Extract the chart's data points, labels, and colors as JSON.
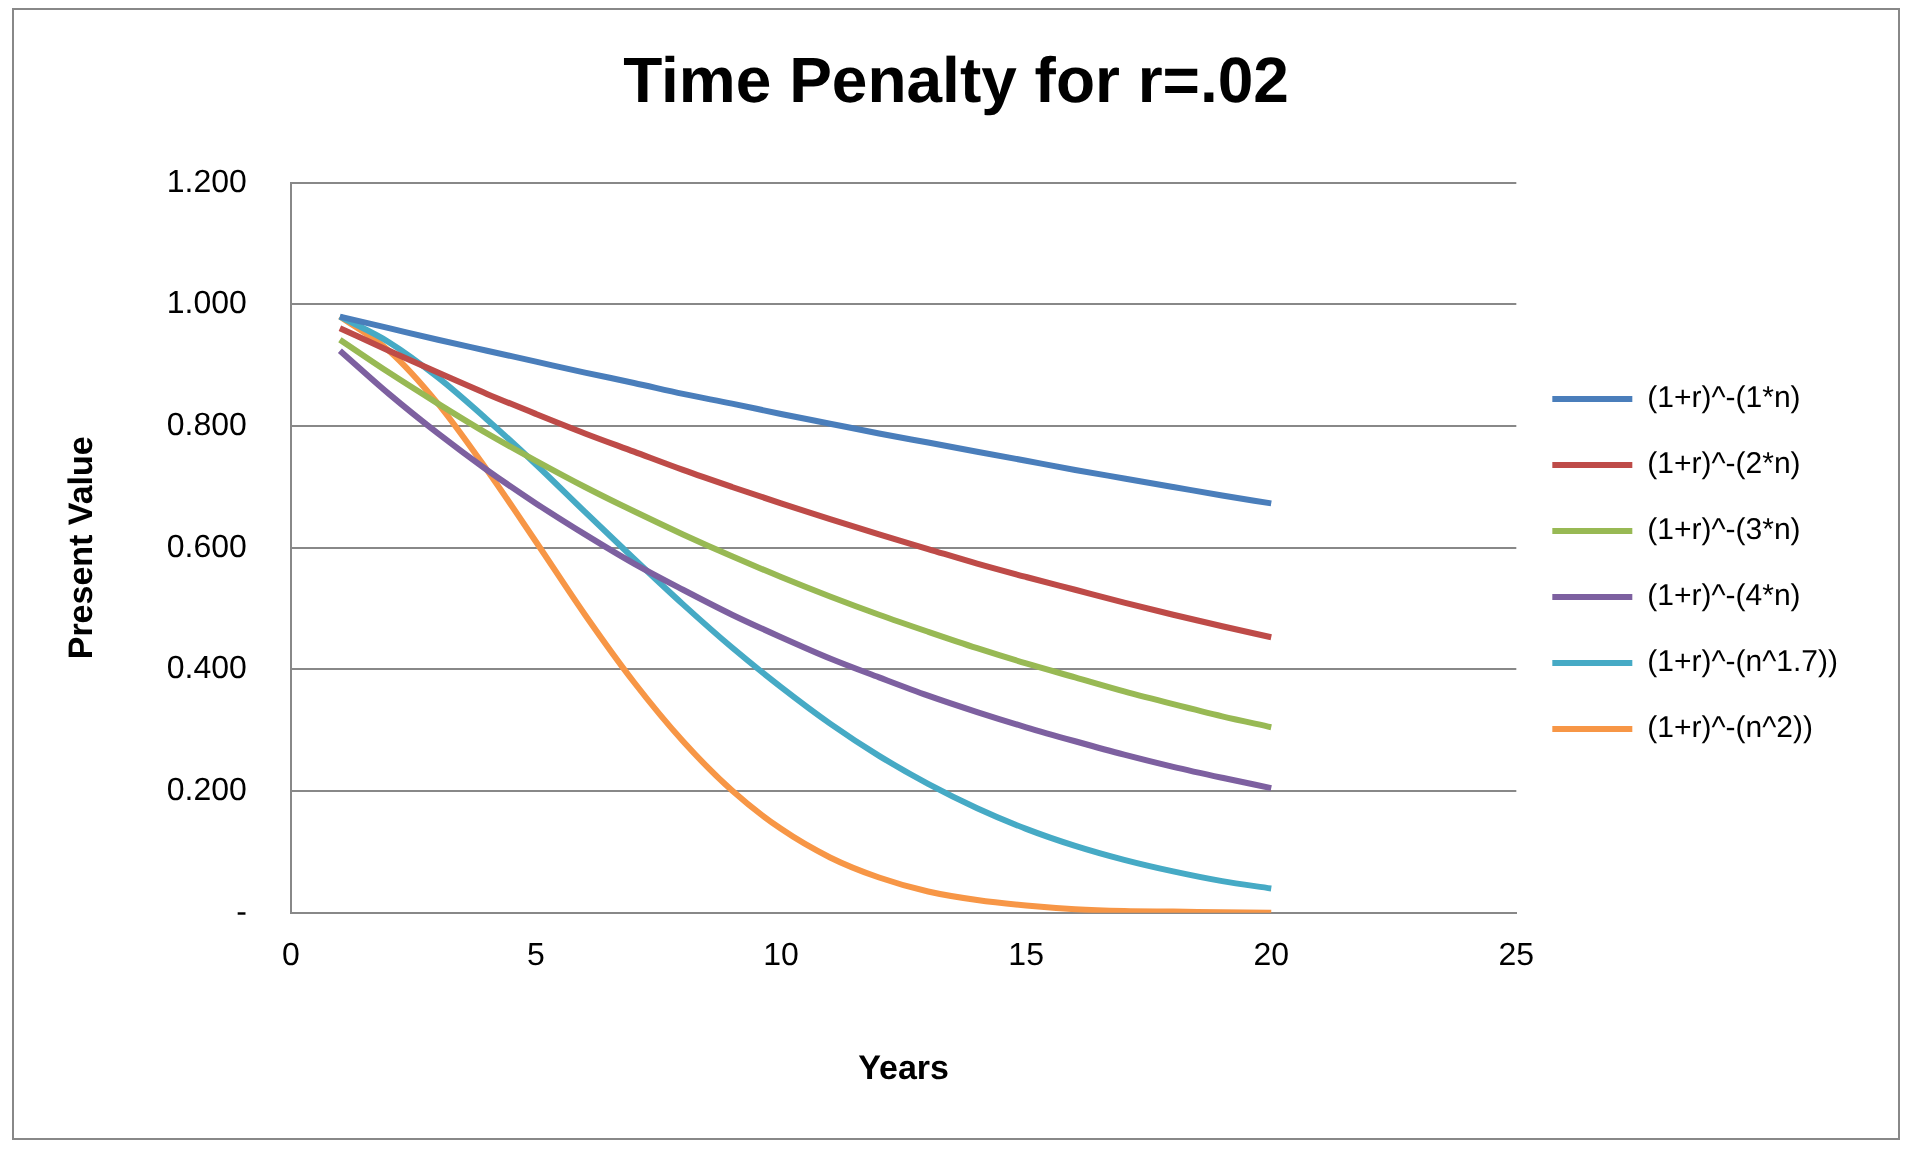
{
  "chart_data": {
    "type": "line",
    "title": "Time Penalty for r=.02",
    "xlabel": "Years",
    "ylabel": "Present Value",
    "x": [
      1,
      2,
      3,
      4,
      5,
      6,
      7,
      8,
      9,
      10,
      11,
      12,
      13,
      14,
      15,
      16,
      17,
      18,
      19,
      20
    ],
    "xlim": [
      0,
      25
    ],
    "xticks": [
      0,
      5,
      10,
      15,
      20,
      25
    ],
    "ylim": [
      0,
      1.2
    ],
    "yticks": [
      {
        "value": 0,
        "label": "-"
      },
      {
        "value": 0.2,
        "label": "0.200"
      },
      {
        "value": 0.4,
        "label": "0.400"
      },
      {
        "value": 0.6,
        "label": "0.600"
      },
      {
        "value": 0.8,
        "label": "0.800"
      },
      {
        "value": 1,
        "label": "1.000"
      },
      {
        "value": 1.2,
        "label": "1.200"
      }
    ],
    "grid": "y",
    "legend": "right",
    "marker": "none",
    "line_style": "solid",
    "series": [
      {
        "name": "(1+r)^-(1*n)",
        "color": "#4a7ebb",
        "values": [
          0.98,
          0.961,
          0.942,
          0.924,
          0.906,
          0.888,
          0.871,
          0.853,
          0.837,
          0.82,
          0.804,
          0.788,
          0.773,
          0.758,
          0.743,
          0.728,
          0.714,
          0.7,
          0.686,
          0.673
        ]
      },
      {
        "name": "(1+r)^-(2*n)",
        "color": "#be4b48",
        "values": [
          0.961,
          0.924,
          0.888,
          0.853,
          0.82,
          0.788,
          0.758,
          0.728,
          0.7,
          0.673,
          0.647,
          0.622,
          0.598,
          0.574,
          0.552,
          0.531,
          0.51,
          0.49,
          0.471,
          0.453
        ]
      },
      {
        "name": "(1+r)^-(3*n)",
        "color": "#98b954",
        "values": [
          0.942,
          0.888,
          0.837,
          0.788,
          0.743,
          0.7,
          0.66,
          0.622,
          0.586,
          0.552,
          0.52,
          0.49,
          0.462,
          0.435,
          0.41,
          0.387,
          0.364,
          0.343,
          0.323,
          0.305
        ]
      },
      {
        "name": "(1+r)^-(4*n)",
        "color": "#7d60a0",
        "values": [
          0.924,
          0.853,
          0.788,
          0.728,
          0.673,
          0.622,
          0.574,
          0.531,
          0.49,
          0.453,
          0.418,
          0.387,
          0.357,
          0.33,
          0.305,
          0.282,
          0.26,
          0.24,
          0.222,
          0.205
        ]
      },
      {
        "name": "(1+r)^-(n^1.7))",
        "color": "#46aac5",
        "values": [
          0.98,
          0.938,
          0.88,
          0.811,
          0.737,
          0.659,
          0.582,
          0.507,
          0.436,
          0.371,
          0.311,
          0.258,
          0.212,
          0.172,
          0.138,
          0.11,
          0.087,
          0.068,
          0.052,
          0.04
        ]
      },
      {
        "name": "(1+r)^-(n^2))",
        "color": "#f79646",
        "values": [
          0.98,
          0.924,
          0.837,
          0.728,
          0.61,
          0.49,
          0.379,
          0.282,
          0.201,
          0.138,
          0.091,
          0.058,
          0.035,
          0.021,
          0.012,
          0.006,
          0.003,
          0.002,
          0.001,
          0.0
        ]
      }
    ]
  }
}
